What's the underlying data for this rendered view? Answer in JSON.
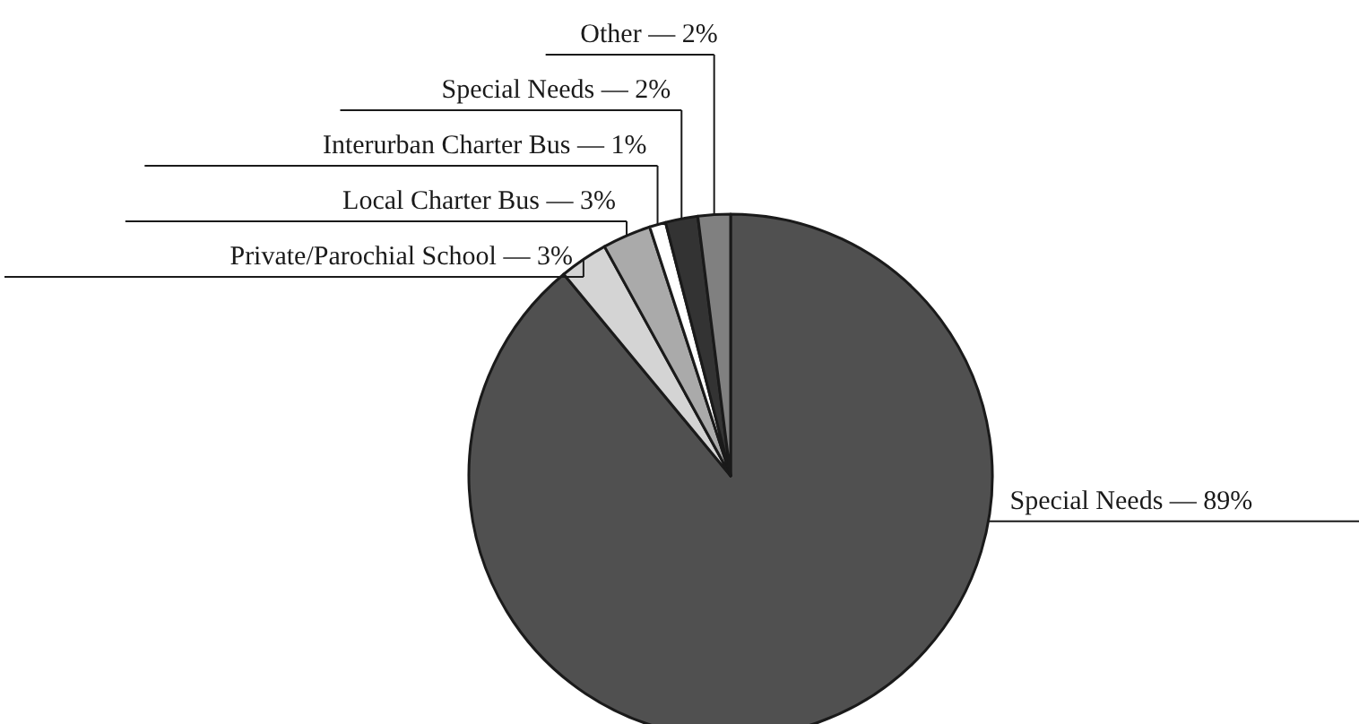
{
  "chart_data": {
    "type": "pie",
    "categories": [
      "Special Needs",
      "Private/Parochial School",
      "Local Charter Bus",
      "Interurban Charter Bus",
      "Special Needs",
      "Other"
    ],
    "values": [
      89,
      3,
      3,
      1,
      2,
      2
    ],
    "colors": [
      "#505050",
      "#d4d4d4",
      "#aaaaaa",
      "#ffffff",
      "#333333",
      "#808080"
    ],
    "value_labels": [
      "— 89%",
      "— 3%",
      "— 3%",
      "— 1%",
      "— 2%",
      "— 2%"
    ]
  }
}
